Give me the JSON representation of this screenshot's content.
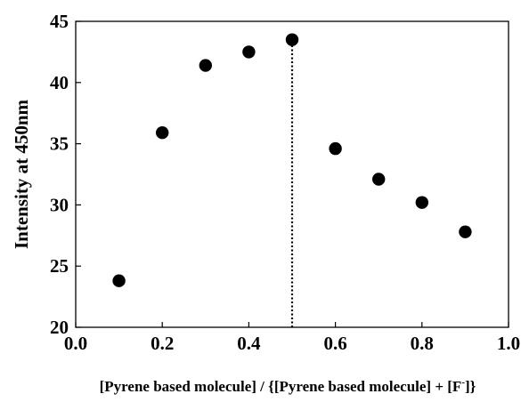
{
  "chart_data": {
    "type": "scatter",
    "title": "",
    "xlabel": "[Pyrene based molecule] / {[Pyrene based molecule] + [F",
    "xlabel_superscript": "-",
    "xlabel_closing": "]}",
    "ylabel": "Intensity at 450nm",
    "xlim": [
      0.0,
      1.0
    ],
    "ylim": [
      20,
      45
    ],
    "xticks": [
      0.0,
      0.2,
      0.4,
      0.6,
      0.8,
      1.0
    ],
    "xtick_labels": [
      "0.0",
      "0.2",
      "0.4",
      "0.6",
      "0.8",
      "1.0"
    ],
    "yticks": [
      20,
      25,
      30,
      35,
      40,
      45
    ],
    "ytick_labels": [
      "20",
      "25",
      "30",
      "35",
      "40",
      "45"
    ],
    "grid": false,
    "legend": "none",
    "marker_color": "#000000",
    "series": [
      {
        "x": [
          0.1,
          0.2,
          0.3,
          0.4,
          0.5,
          0.6,
          0.7,
          0.8,
          0.9
        ],
        "y": [
          23.8,
          35.9,
          41.4,
          42.5,
          43.5,
          34.6,
          32.1,
          30.2,
          27.8
        ]
      }
    ],
    "annotations": [
      {
        "type": "vertical-dotted-line",
        "x": 0.5,
        "y_from": 20,
        "y_to": 43.5
      }
    ]
  }
}
